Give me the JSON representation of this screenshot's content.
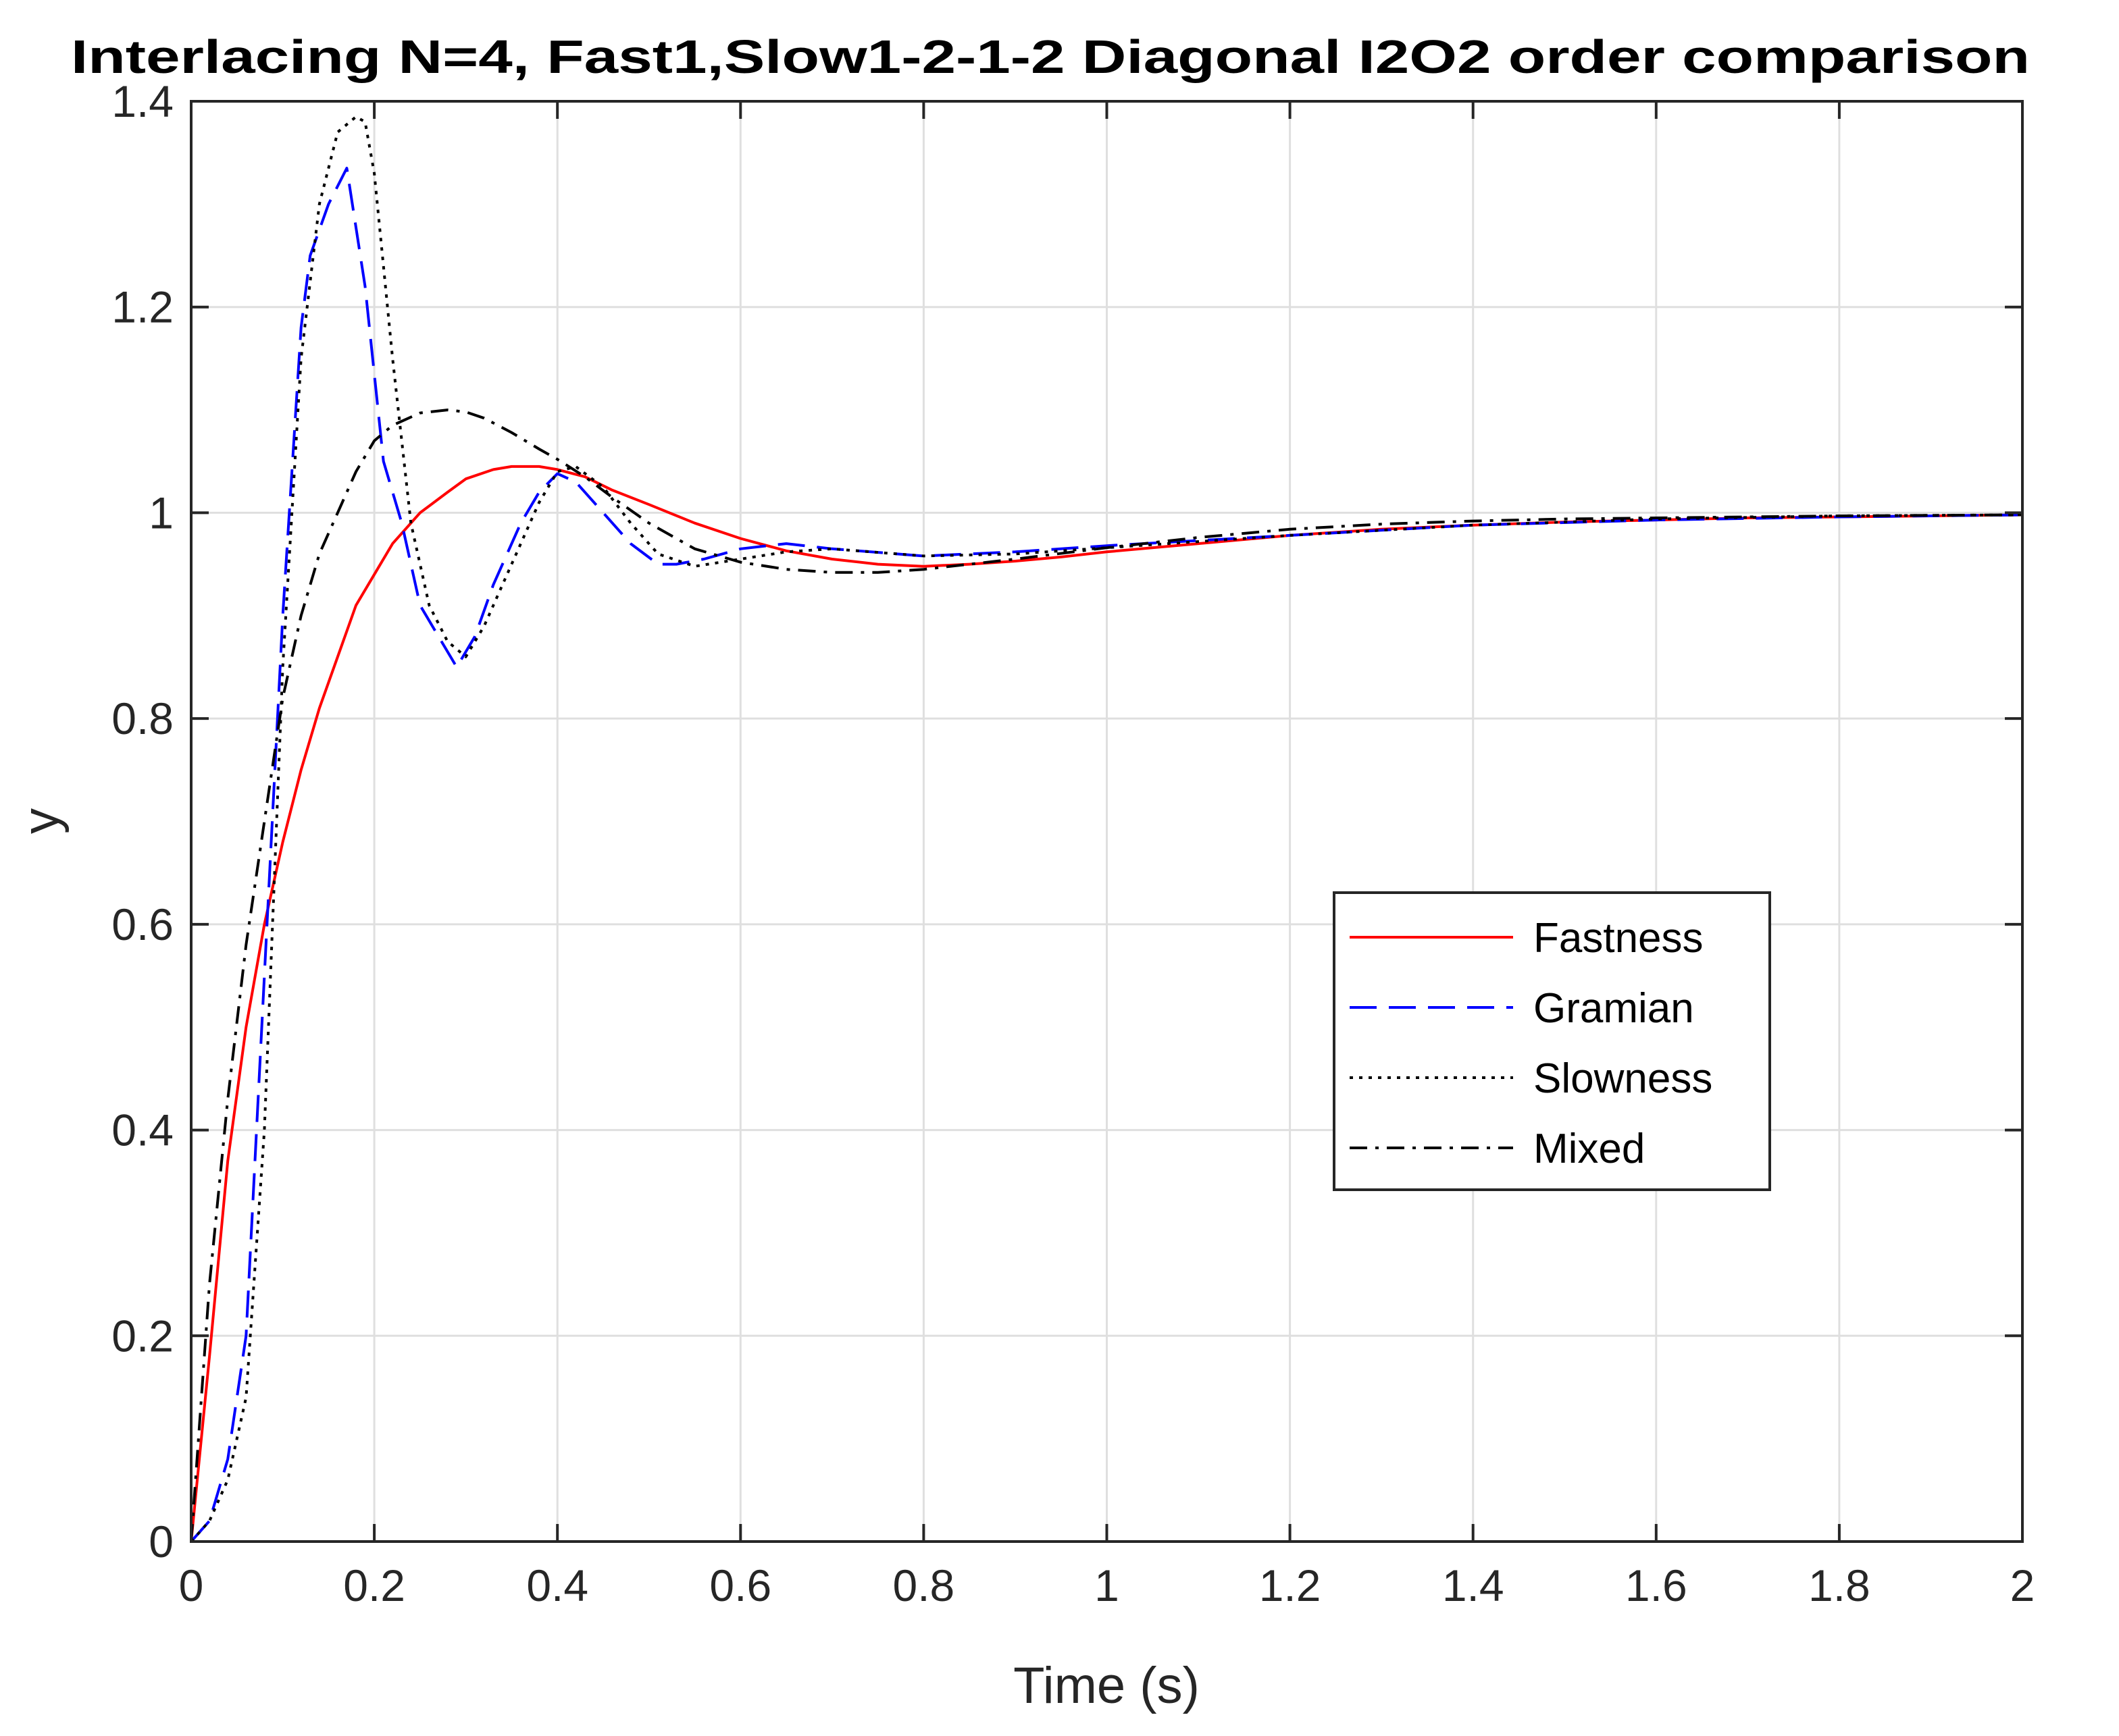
{
  "chart_data": {
    "type": "line",
    "title": "Interlacing N=4, Fast1,Slow1-2-1-2 Diagonal I2O2 order comparison",
    "xlabel": "Time (s)",
    "ylabel": "y",
    "xlim": [
      0,
      2
    ],
    "ylim": [
      0,
      1.4
    ],
    "xticks": [
      0,
      0.2,
      0.4,
      0.6,
      0.8,
      1,
      1.2,
      1.4,
      1.6,
      1.8,
      2
    ],
    "xtick_labels": [
      "0",
      "0.2",
      "0.4",
      "0.6",
      "0.8",
      "1",
      "1.2",
      "1.4",
      "1.6",
      "1.8",
      "2"
    ],
    "yticks": [
      0,
      0.2,
      0.4,
      0.6,
      0.8,
      1,
      1.2,
      1.4
    ],
    "ytick_labels": [
      "0",
      "0.2",
      "0.4",
      "0.6",
      "0.8",
      "1",
      "1.2",
      "1.4"
    ],
    "grid": true,
    "legend_position": "center-right",
    "series": [
      {
        "name": "Fastness",
        "color": "#ff0000",
        "style": "solid",
        "x": [
          0,
          0.02,
          0.04,
          0.06,
          0.08,
          0.1,
          0.12,
          0.14,
          0.16,
          0.18,
          0.2,
          0.22,
          0.25,
          0.28,
          0.3,
          0.33,
          0.35,
          0.38,
          0.4,
          0.43,
          0.46,
          0.5,
          0.55,
          0.6,
          0.65,
          0.7,
          0.75,
          0.8,
          0.85,
          0.9,
          0.95,
          1.0,
          1.1,
          1.2,
          1.3,
          1.4,
          1.5,
          1.6,
          1.7,
          1.8,
          1.9,
          2.0
        ],
        "y": [
          0,
          0.18,
          0.37,
          0.5,
          0.6,
          0.68,
          0.75,
          0.81,
          0.86,
          0.91,
          0.94,
          0.97,
          1.0,
          1.02,
          1.033,
          1.042,
          1.045,
          1.045,
          1.042,
          1.035,
          1.022,
          1.008,
          0.99,
          0.975,
          0.963,
          0.955,
          0.95,
          0.948,
          0.95,
          0.953,
          0.957,
          0.962,
          0.97,
          0.978,
          0.984,
          0.988,
          0.991,
          0.993,
          0.995,
          0.996,
          0.997,
          0.998
        ]
      },
      {
        "name": "Gramian",
        "color": "#0000ff",
        "style": "dashed",
        "x": [
          0,
          0.02,
          0.04,
          0.06,
          0.08,
          0.1,
          0.12,
          0.13,
          0.15,
          0.17,
          0.19,
          0.21,
          0.23,
          0.25,
          0.27,
          0.29,
          0.31,
          0.33,
          0.36,
          0.38,
          0.4,
          0.42,
          0.45,
          0.48,
          0.51,
          0.53,
          0.56,
          0.6,
          0.65,
          0.7,
          0.8,
          0.9,
          1.0,
          1.2,
          1.4,
          1.6,
          1.8,
          2.0
        ],
        "y": [
          0,
          0.02,
          0.08,
          0.2,
          0.55,
          0.9,
          1.18,
          1.25,
          1.3,
          1.335,
          1.22,
          1.05,
          0.99,
          0.91,
          0.88,
          0.85,
          0.88,
          0.93,
          0.99,
          1.02,
          1.038,
          1.03,
          1.0,
          0.97,
          0.95,
          0.95,
          0.955,
          0.965,
          0.97,
          0.965,
          0.958,
          0.962,
          0.968,
          0.978,
          0.988,
          0.993,
          0.996,
          0.998
        ]
      },
      {
        "name": "Slowness",
        "color": "#000000",
        "style": "dotted",
        "x": [
          0,
          0.02,
          0.04,
          0.06,
          0.08,
          0.1,
          0.12,
          0.14,
          0.16,
          0.18,
          0.19,
          0.2,
          0.22,
          0.24,
          0.26,
          0.28,
          0.3,
          0.32,
          0.35,
          0.38,
          0.4,
          0.42,
          0.45,
          0.48,
          0.51,
          0.55,
          0.6,
          0.65,
          0.7,
          0.8,
          0.9,
          1.0,
          1.2,
          1.4,
          1.6,
          1.8,
          2.0
        ],
        "y": [
          0,
          0.02,
          0.06,
          0.14,
          0.4,
          0.85,
          1.15,
          1.3,
          1.37,
          1.385,
          1.38,
          1.33,
          1.15,
          0.99,
          0.91,
          0.875,
          0.86,
          0.89,
          0.95,
          1.01,
          1.04,
          1.045,
          1.025,
          0.99,
          0.96,
          0.948,
          0.955,
          0.962,
          0.965,
          0.958,
          0.96,
          0.966,
          0.978,
          0.988,
          0.994,
          0.997,
          0.998
        ]
      },
      {
        "name": "Mixed",
        "color": "#000000",
        "style": "dashdot",
        "x": [
          0,
          0.02,
          0.04,
          0.06,
          0.08,
          0.1,
          0.12,
          0.14,
          0.16,
          0.18,
          0.2,
          0.22,
          0.25,
          0.28,
          0.3,
          0.32,
          0.35,
          0.38,
          0.4,
          0.43,
          0.46,
          0.5,
          0.55,
          0.6,
          0.65,
          0.7,
          0.75,
          0.8,
          0.85,
          0.9,
          1.0,
          1.1,
          1.2,
          1.3,
          1.4,
          1.5,
          1.6,
          1.8,
          2.0
        ],
        "y": [
          0,
          0.25,
          0.43,
          0.58,
          0.7,
          0.82,
          0.9,
          0.96,
          1.0,
          1.04,
          1.07,
          1.085,
          1.097,
          1.1,
          1.098,
          1.092,
          1.078,
          1.062,
          1.052,
          1.035,
          1.015,
          0.99,
          0.965,
          0.952,
          0.945,
          0.942,
          0.942,
          0.945,
          0.95,
          0.955,
          0.966,
          0.976,
          0.984,
          0.989,
          0.992,
          0.994,
          0.995,
          0.997,
          0.998
        ]
      }
    ]
  }
}
